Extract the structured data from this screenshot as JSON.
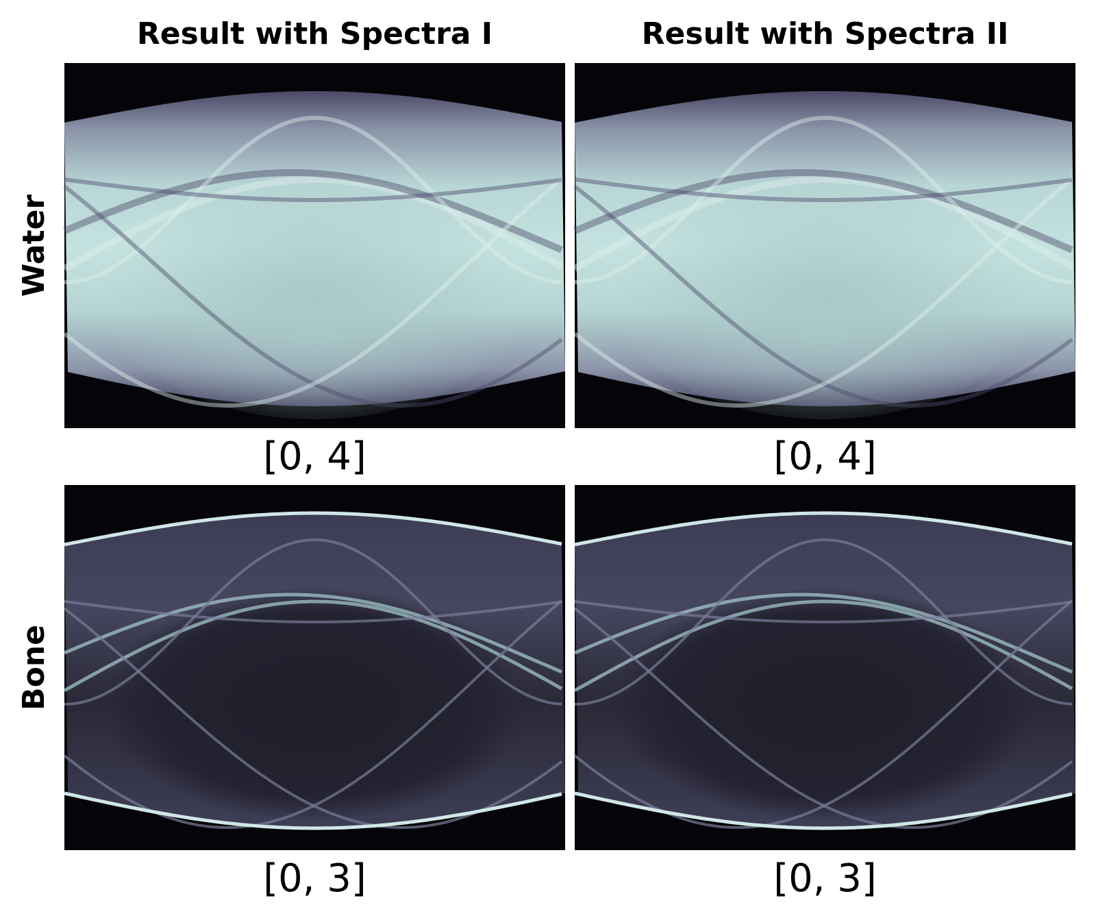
{
  "columns": [
    "Result with Spectra I",
    "Result with Spectra II"
  ],
  "rows": [
    {
      "label": "Water",
      "panels": [
        {
          "range": "[0, 4]"
        },
        {
          "range": "[0, 4]"
        }
      ]
    },
    {
      "label": "Bone",
      "panels": [
        {
          "range": "[0, 3]"
        },
        {
          "range": "[0, 3]"
        }
      ]
    }
  ]
}
